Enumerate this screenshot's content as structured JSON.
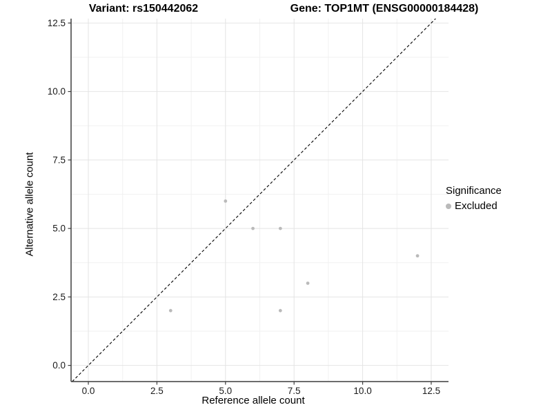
{
  "chart_data": {
    "type": "scatter",
    "title_left": "Variant: rs150442062",
    "title_right": "Gene: TOP1MT (ENSG00000184428)",
    "xlabel": "Reference allele count",
    "ylabel": "Alternative allele count",
    "xlim": [
      -0.63,
      13.13
    ],
    "ylim": [
      -0.59,
      12.66
    ],
    "x_ticks": {
      "values": [
        0,
        2.5,
        5,
        7.5,
        10,
        12.5
      ],
      "labels": [
        "0.0",
        "2.5",
        "5.0",
        "7.5",
        "10.0",
        "12.5"
      ]
    },
    "y_ticks": {
      "values": [
        0,
        2.5,
        5,
        7.5,
        10,
        12.5
      ],
      "labels": [
        "0.0",
        "2.5",
        "5.0",
        "7.5",
        "10.0",
        "12.5"
      ]
    },
    "minor_gridlines": [
      1.25,
      3.75,
      6.25,
      8.75,
      11.25
    ],
    "grid": "major and minor gridlines, light grey on white panel",
    "identity_line": {
      "style": "dashed",
      "equation": "y = x"
    },
    "series": [
      {
        "name": "Excluded",
        "color": "#bababa",
        "points": [
          {
            "x": 3,
            "y": 2
          },
          {
            "x": 5,
            "y": 6
          },
          {
            "x": 6,
            "y": 5
          },
          {
            "x": 7,
            "y": 2
          },
          {
            "x": 7,
            "y": 5
          },
          {
            "x": 8,
            "y": 3
          },
          {
            "x": 12,
            "y": 4
          }
        ]
      }
    ],
    "legend": {
      "title": "Significance",
      "position": "right",
      "items": [
        {
          "label": "Excluded",
          "color": "#bababa"
        }
      ]
    }
  },
  "colors": {
    "background": "#ffffff",
    "axis_line": "#3c3c3c",
    "tick_label": "#1a1a1a",
    "grid_major": "#e4e4e4",
    "grid_minor": "#f1f1f1",
    "point": "#bababa",
    "diagonal": "#000000"
  }
}
